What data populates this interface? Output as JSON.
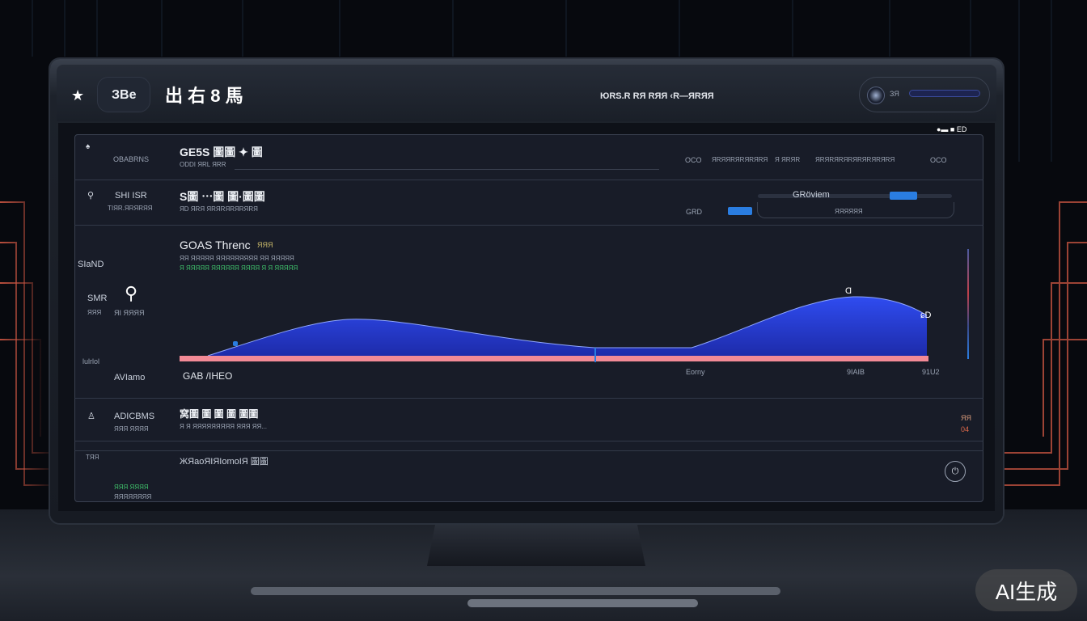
{
  "header": {
    "star_icon": "star-icon",
    "pill_label": "ЗВe",
    "title": "出 右 8 馬",
    "center_text": "ЮRS.R RЯ RЯЯ ‹R—ЯRЯЯ",
    "control_label": "ЗЯ"
  },
  "screen_corner": "●▬ ■ ЕD",
  "rows": [
    {
      "label": "OBABRNS",
      "title": "GE5S 圖圖 ✦ 圖",
      "subtitle": "ODDI ЯRL ЯRR",
      "cols": [
        "OCO",
        "ЯRЯЯRЯRЯRЯRЯ",
        "Я ЯRЯR",
        "ЯRЯRЯRЯRЯRЯRЯRЯRЯ",
        "OCO"
      ]
    },
    {
      "label": "SHI ISR",
      "sublabel": "TIЯR.ЯRЯRЯЯ",
      "title": "S圖 ⋯圖 圖·圖圖",
      "subtitle": "ЯD ЯRЯ ЯRЯRЯRЯRЯRЯ",
      "left_value": "GRD",
      "slider_label": "GRöviem",
      "field_text": "ЯЯЯЯЯЯ"
    }
  ],
  "chart_section": {
    "title": "GOAS Threnc",
    "title_tag": "ЯЯЯ",
    "desc1": "ЯЯ ЯЯЯЯЯ ЯЯЯЯЯЯЯЯЯ ЯЯ ЯЯЯЯЯ",
    "desc2": "Я ЯЯЯЯЯ ЯЯЯЯЯЯ ЯЯЯЯ Я Я ЯЯЯЯЯ",
    "left_labels": [
      "SIaND",
      "SMR",
      "ЯЯЯ",
      "ЯI ЯЯЯЯ",
      "lulrlol",
      "AVIamo"
    ],
    "x_labels": [
      "GAB /IHEO",
      "Eorny",
      "9IAIB",
      "91U2"
    ],
    "peak_labels": [
      "Ɑ",
      "ɕD"
    ],
    "accent": "#2a3fe0",
    "baseline_color": "#f38a96"
  },
  "rows_bottom": [
    {
      "label": "ADICBMS",
      "sublabel": "ЯЯЯ ЯЯЯЯ",
      "title": "窝圖 圖 圖 圖 圖圖",
      "subtitle": "Я Я ЯЯЯЯЯЯЯЯЯ ЯЯЯ ЯЯ...",
      "right_top": "ЯЯ",
      "right_bottom": "04"
    },
    {
      "label": "TЯЯ",
      "title": "ЖЯaoЯIЯIomoIЯ 圖圖",
      "footer1": "ЯЯЯ ЯЯЯЯ",
      "footer2": "ЯЯЯЯЯЯЯЯ",
      "button_icon": "power-icon"
    }
  ],
  "watermark": "AI生成"
}
